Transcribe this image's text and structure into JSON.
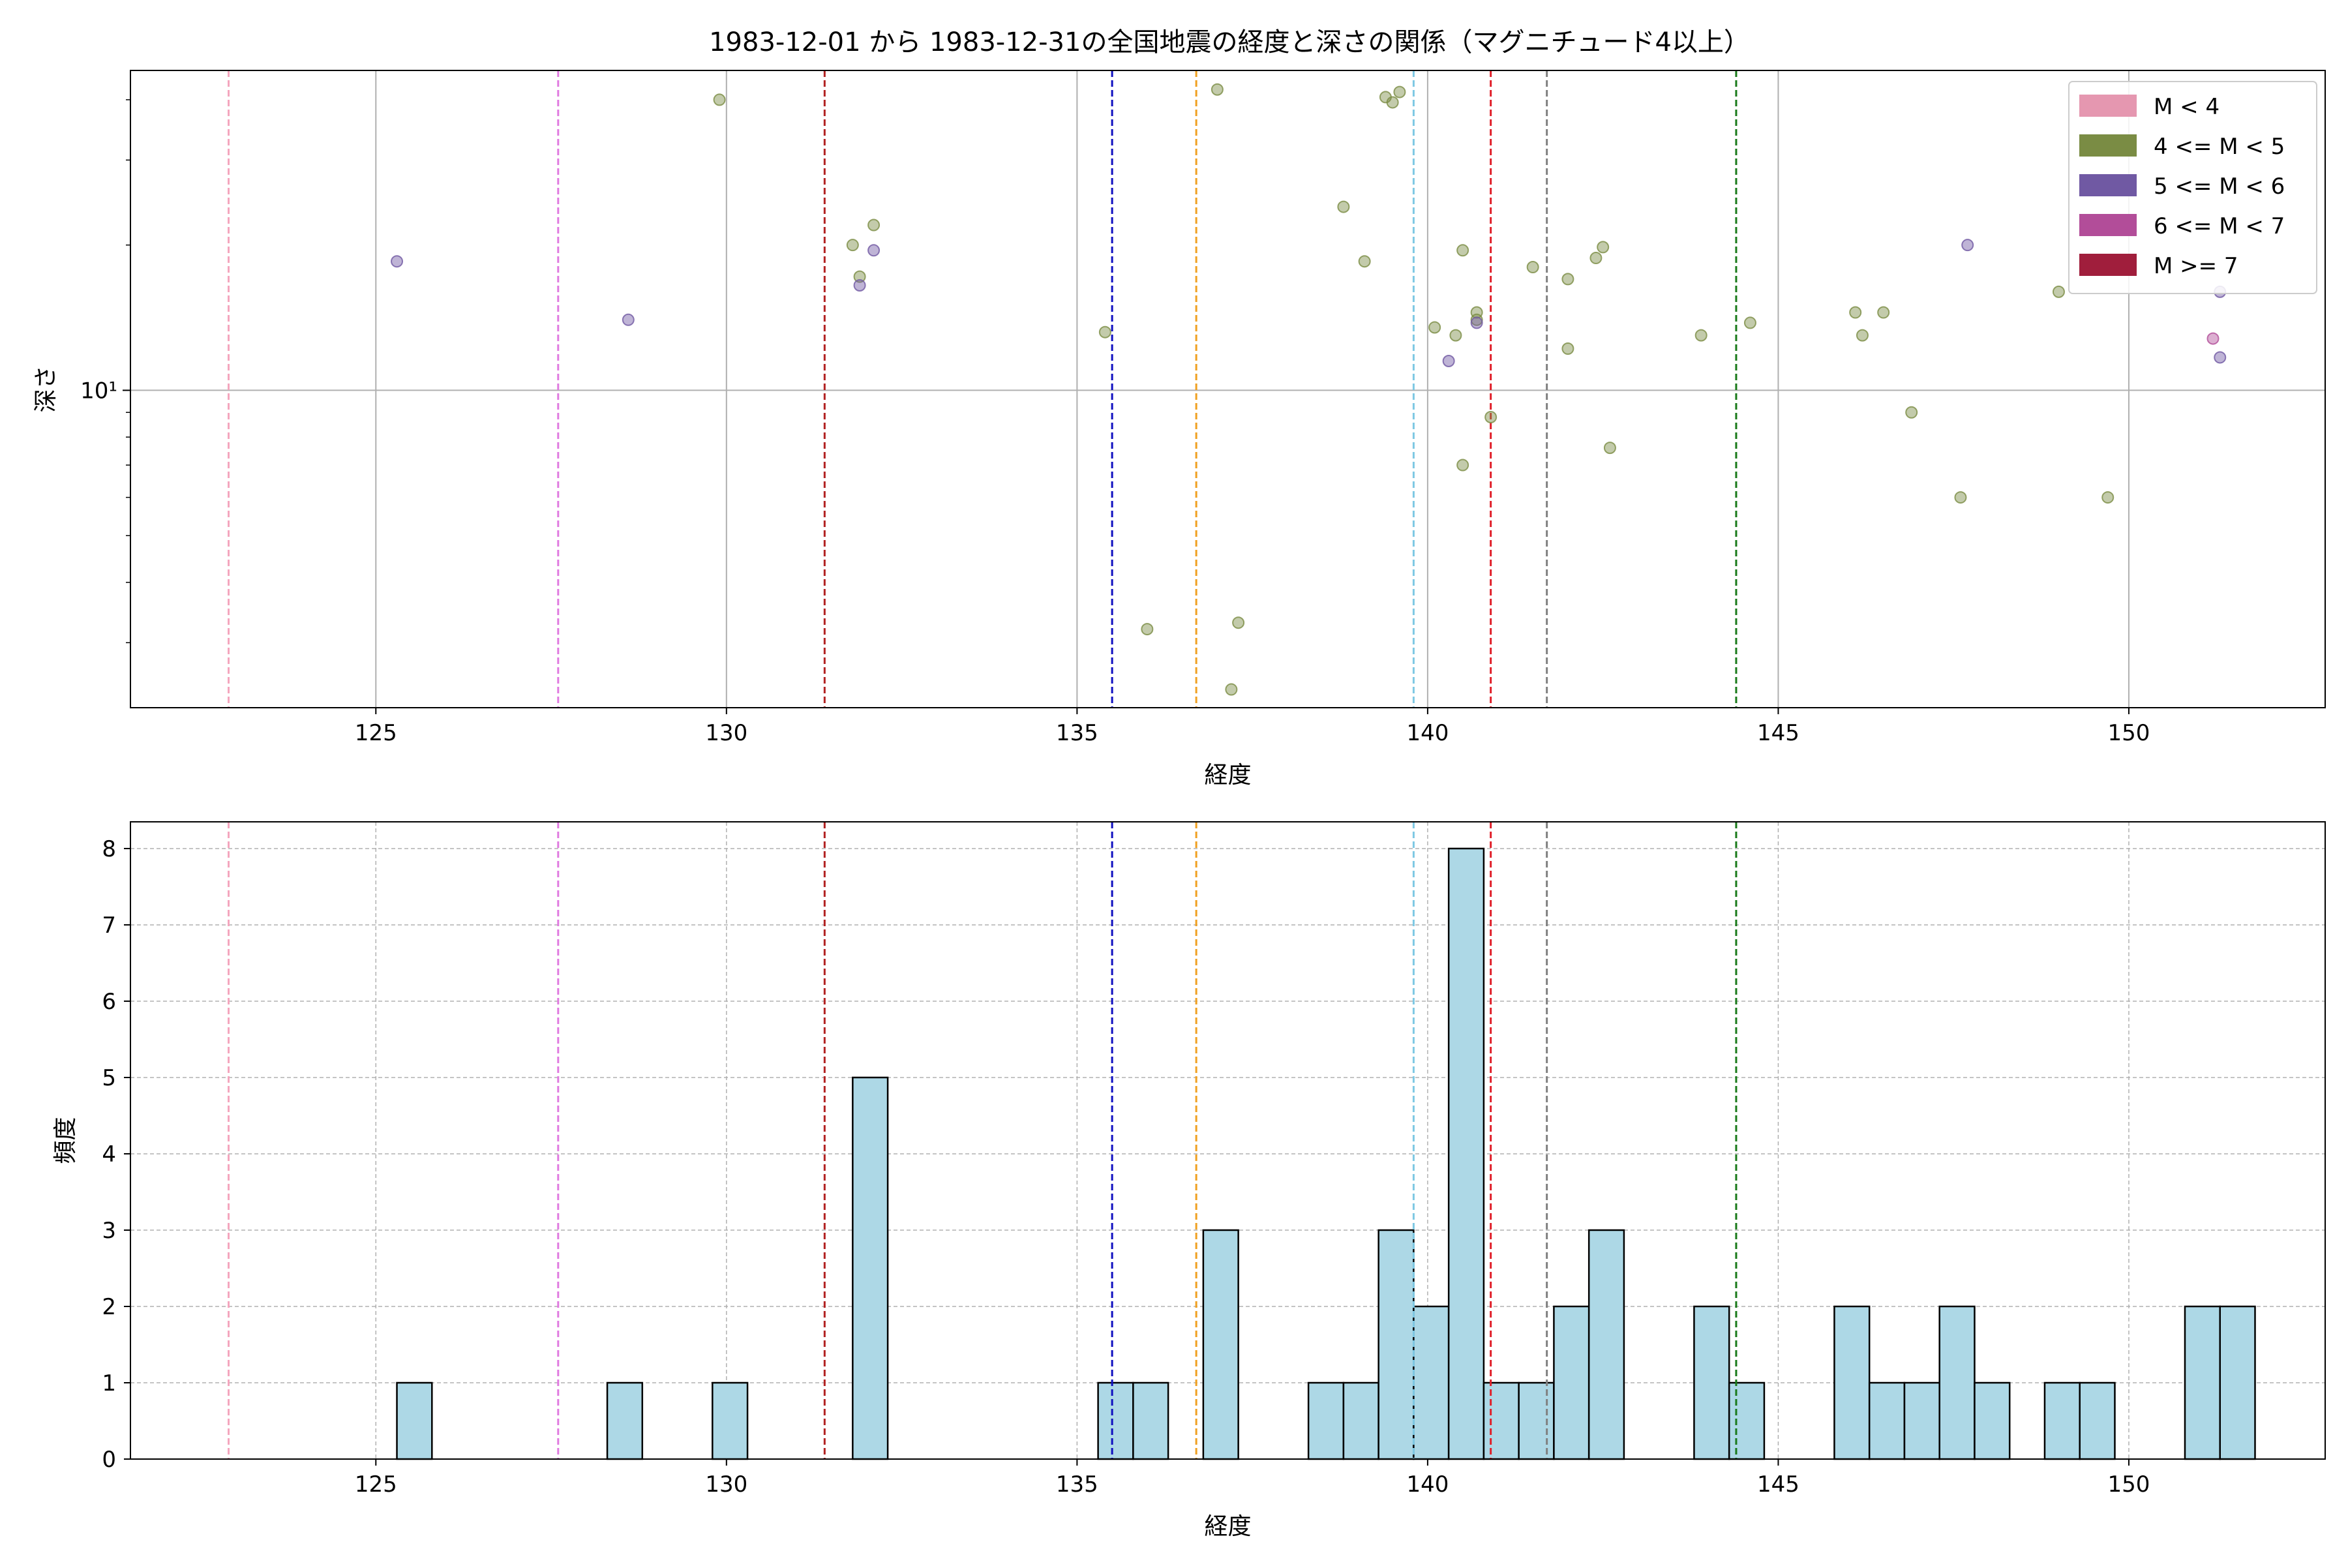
{
  "chart_data": [
    {
      "type": "scatter",
      "title": "1983-12-01 から 1983-12-31の全国地震の経度と深さの関係（マグニチュード4以上）",
      "xlabel": "経度",
      "ylabel": "深さ",
      "xlim": [
        121.5,
        152.8
      ],
      "ylim": [
        2.2,
        46
      ],
      "yscale": "log",
      "x_ticks": [
        125,
        130,
        135,
        140,
        145,
        150
      ],
      "y_ticks": [
        {
          "value": 10,
          "label": "10¹"
        }
      ],
      "grid": true,
      "legend_position": "top-right",
      "legend": [
        {
          "label": "M < 4",
          "color": "#e597b0"
        },
        {
          "label": "4 <= M < 5",
          "color": "#7a8c44"
        },
        {
          "label": "5 <= M < 6",
          "color": "#7059a3"
        },
        {
          "label": "6 <= M < 7",
          "color": "#b24d99"
        },
        {
          "label": "M >= 7",
          "color": "#a01e3c"
        }
      ],
      "vlines": [
        {
          "x": 122.9,
          "color": "#f4a6be"
        },
        {
          "x": 127.6,
          "color": "#e07be0"
        },
        {
          "x": 131.4,
          "color": "#b22222"
        },
        {
          "x": 135.5,
          "color": "#1010c0"
        },
        {
          "x": 136.7,
          "color": "#f0a020"
        },
        {
          "x": 139.8,
          "color": "#7ec8e3"
        },
        {
          "x": 140.9,
          "color": "#e0202a"
        },
        {
          "x": 141.7,
          "color": "#808080"
        },
        {
          "x": 144.4,
          "color": "#1a7a1a"
        }
      ],
      "series": [
        {
          "name": "4 <= M < 5",
          "color": "#7a8c44",
          "points": [
            [
              129.9,
              40
            ],
            [
              131.8,
              20
            ],
            [
              132.1,
              22
            ],
            [
              131.9,
              17.2
            ],
            [
              135.4,
              13.2
            ],
            [
              137.0,
              42
            ],
            [
              136.0,
              3.2
            ],
            [
              137.3,
              3.3
            ],
            [
              137.2,
              2.4
            ],
            [
              138.8,
              24
            ],
            [
              139.1,
              18.5
            ],
            [
              139.4,
              40.5
            ],
            [
              139.6,
              41.5
            ],
            [
              139.5,
              39.5
            ],
            [
              140.1,
              13.5
            ],
            [
              140.4,
              13
            ],
            [
              140.5,
              19.5
            ],
            [
              140.5,
              7.0
            ],
            [
              140.7,
              14.5
            ],
            [
              140.7,
              14.0
            ],
            [
              140.9,
              8.8
            ],
            [
              141.5,
              18
            ],
            [
              142.0,
              17
            ],
            [
              142.0,
              12.2
            ],
            [
              142.4,
              18.8
            ],
            [
              142.5,
              19.8
            ],
            [
              142.6,
              7.6
            ],
            [
              143.9,
              13
            ],
            [
              144.6,
              13.8
            ],
            [
              146.1,
              14.5
            ],
            [
              146.2,
              13
            ],
            [
              146.5,
              14.5
            ],
            [
              146.9,
              9.0
            ],
            [
              147.6,
              6.0
            ],
            [
              149.0,
              16
            ],
            [
              149.7,
              6.0
            ]
          ]
        },
        {
          "name": "5 <= M < 6",
          "color": "#7059a3",
          "points": [
            [
              125.3,
              18.5
            ],
            [
              128.6,
              14
            ],
            [
              131.9,
              16.5
            ],
            [
              132.1,
              19.5
            ],
            [
              140.3,
              11.5
            ],
            [
              140.7,
              13.8
            ],
            [
              147.7,
              20
            ],
            [
              151.3,
              16
            ],
            [
              151.3,
              11.7
            ]
          ]
        },
        {
          "name": "6 <= M < 7",
          "color": "#b24d99",
          "points": [
            [
              151.2,
              12.8
            ]
          ]
        }
      ]
    },
    {
      "type": "bar",
      "xlabel": "経度",
      "ylabel": "頻度",
      "xlim": [
        121.5,
        152.8
      ],
      "ylim": [
        0,
        8.35
      ],
      "x_ticks": [
        125,
        130,
        135,
        140,
        145,
        150
      ],
      "y_ticks": [
        0,
        1,
        2,
        3,
        4,
        5,
        6,
        7,
        8
      ],
      "grid": true,
      "bar_color": "#add8e6",
      "bin_width": 0.5,
      "bins": [
        [
          125.3,
          1
        ],
        [
          128.3,
          1
        ],
        [
          129.8,
          1
        ],
        [
          131.8,
          5
        ],
        [
          135.3,
          1
        ],
        [
          135.8,
          1
        ],
        [
          136.8,
          3
        ],
        [
          138.3,
          1
        ],
        [
          138.8,
          1
        ],
        [
          139.3,
          3
        ],
        [
          139.8,
          2
        ],
        [
          140.3,
          8
        ],
        [
          140.8,
          1
        ],
        [
          141.3,
          1
        ],
        [
          141.8,
          2
        ],
        [
          142.3,
          3
        ],
        [
          143.8,
          2
        ],
        [
          144.3,
          1
        ],
        [
          145.8,
          2
        ],
        [
          146.3,
          1
        ],
        [
          146.8,
          1
        ],
        [
          147.3,
          2
        ],
        [
          147.8,
          1
        ],
        [
          148.8,
          1
        ],
        [
          149.3,
          1
        ],
        [
          150.8,
          2
        ],
        [
          151.3,
          2
        ]
      ],
      "vlines": [
        {
          "x": 122.9,
          "color": "#f4a6be"
        },
        {
          "x": 127.6,
          "color": "#e07be0"
        },
        {
          "x": 131.4,
          "color": "#b22222"
        },
        {
          "x": 135.5,
          "color": "#1010c0"
        },
        {
          "x": 136.7,
          "color": "#f0a020"
        },
        {
          "x": 139.8,
          "color": "#7ec8e3"
        },
        {
          "x": 140.9,
          "color": "#e0202a"
        },
        {
          "x": 141.7,
          "color": "#808080"
        },
        {
          "x": 144.4,
          "color": "#1a7a1a"
        }
      ]
    }
  ]
}
